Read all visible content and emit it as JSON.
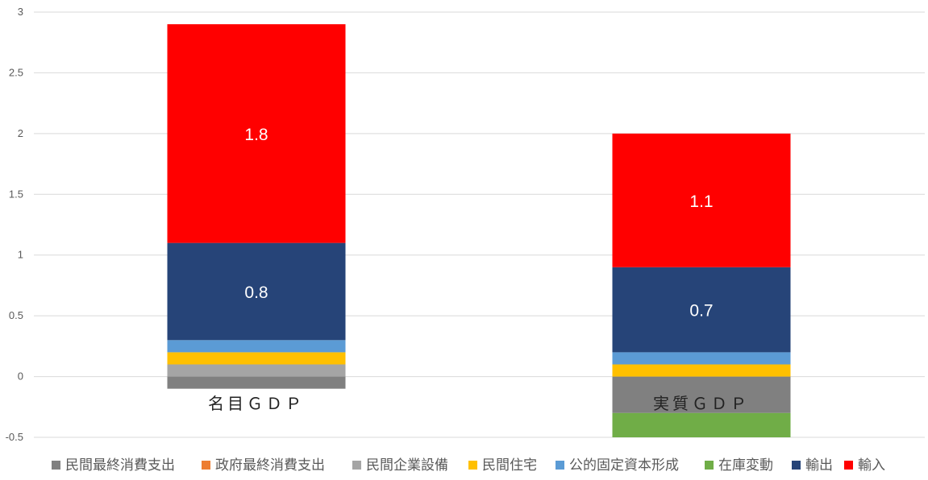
{
  "chart_data": {
    "type": "bar",
    "stacked": true,
    "categories": [
      "名目ＧＤＰ",
      "実質ＧＤＰ"
    ],
    "series": [
      {
        "name": "民間最終消費支出",
        "color": "#808080",
        "values": [
          -0.1,
          -0.3
        ]
      },
      {
        "name": "政府最終消費支出",
        "color": "#ED7D31",
        "values": [
          0.0,
          0.0
        ]
      },
      {
        "name": "民間企業設備",
        "color": "#A5A5A5",
        "values": [
          0.1,
          0.0
        ]
      },
      {
        "name": "民間住宅",
        "color": "#FFC000",
        "values": [
          0.1,
          0.1
        ]
      },
      {
        "name": "公的固定資本形成",
        "color": "#5B9BD5",
        "values": [
          0.1,
          0.1
        ]
      },
      {
        "name": "在庫変動",
        "color": "#70AD47",
        "values": [
          0.0,
          -0.2
        ]
      },
      {
        "name": "輸出",
        "color": "#264478",
        "values": [
          0.8,
          0.7
        ]
      },
      {
        "name": "輸入",
        "color": "#FF0000",
        "values": [
          1.8,
          1.1
        ]
      }
    ],
    "data_labels": [
      {
        "series": "輸出",
        "values": [
          "0.8",
          "0.7"
        ]
      },
      {
        "series": "輸入",
        "values": [
          "1.8",
          "1.1"
        ]
      }
    ],
    "y_ticks": [
      "-0.5",
      "0",
      "0.5",
      "1",
      "1.5",
      "2",
      "2.5",
      "3"
    ],
    "ylim": [
      -0.5,
      3
    ],
    "grid": true,
    "legend": "bottom",
    "title": "",
    "xlabel": "",
    "ylabel": ""
  }
}
